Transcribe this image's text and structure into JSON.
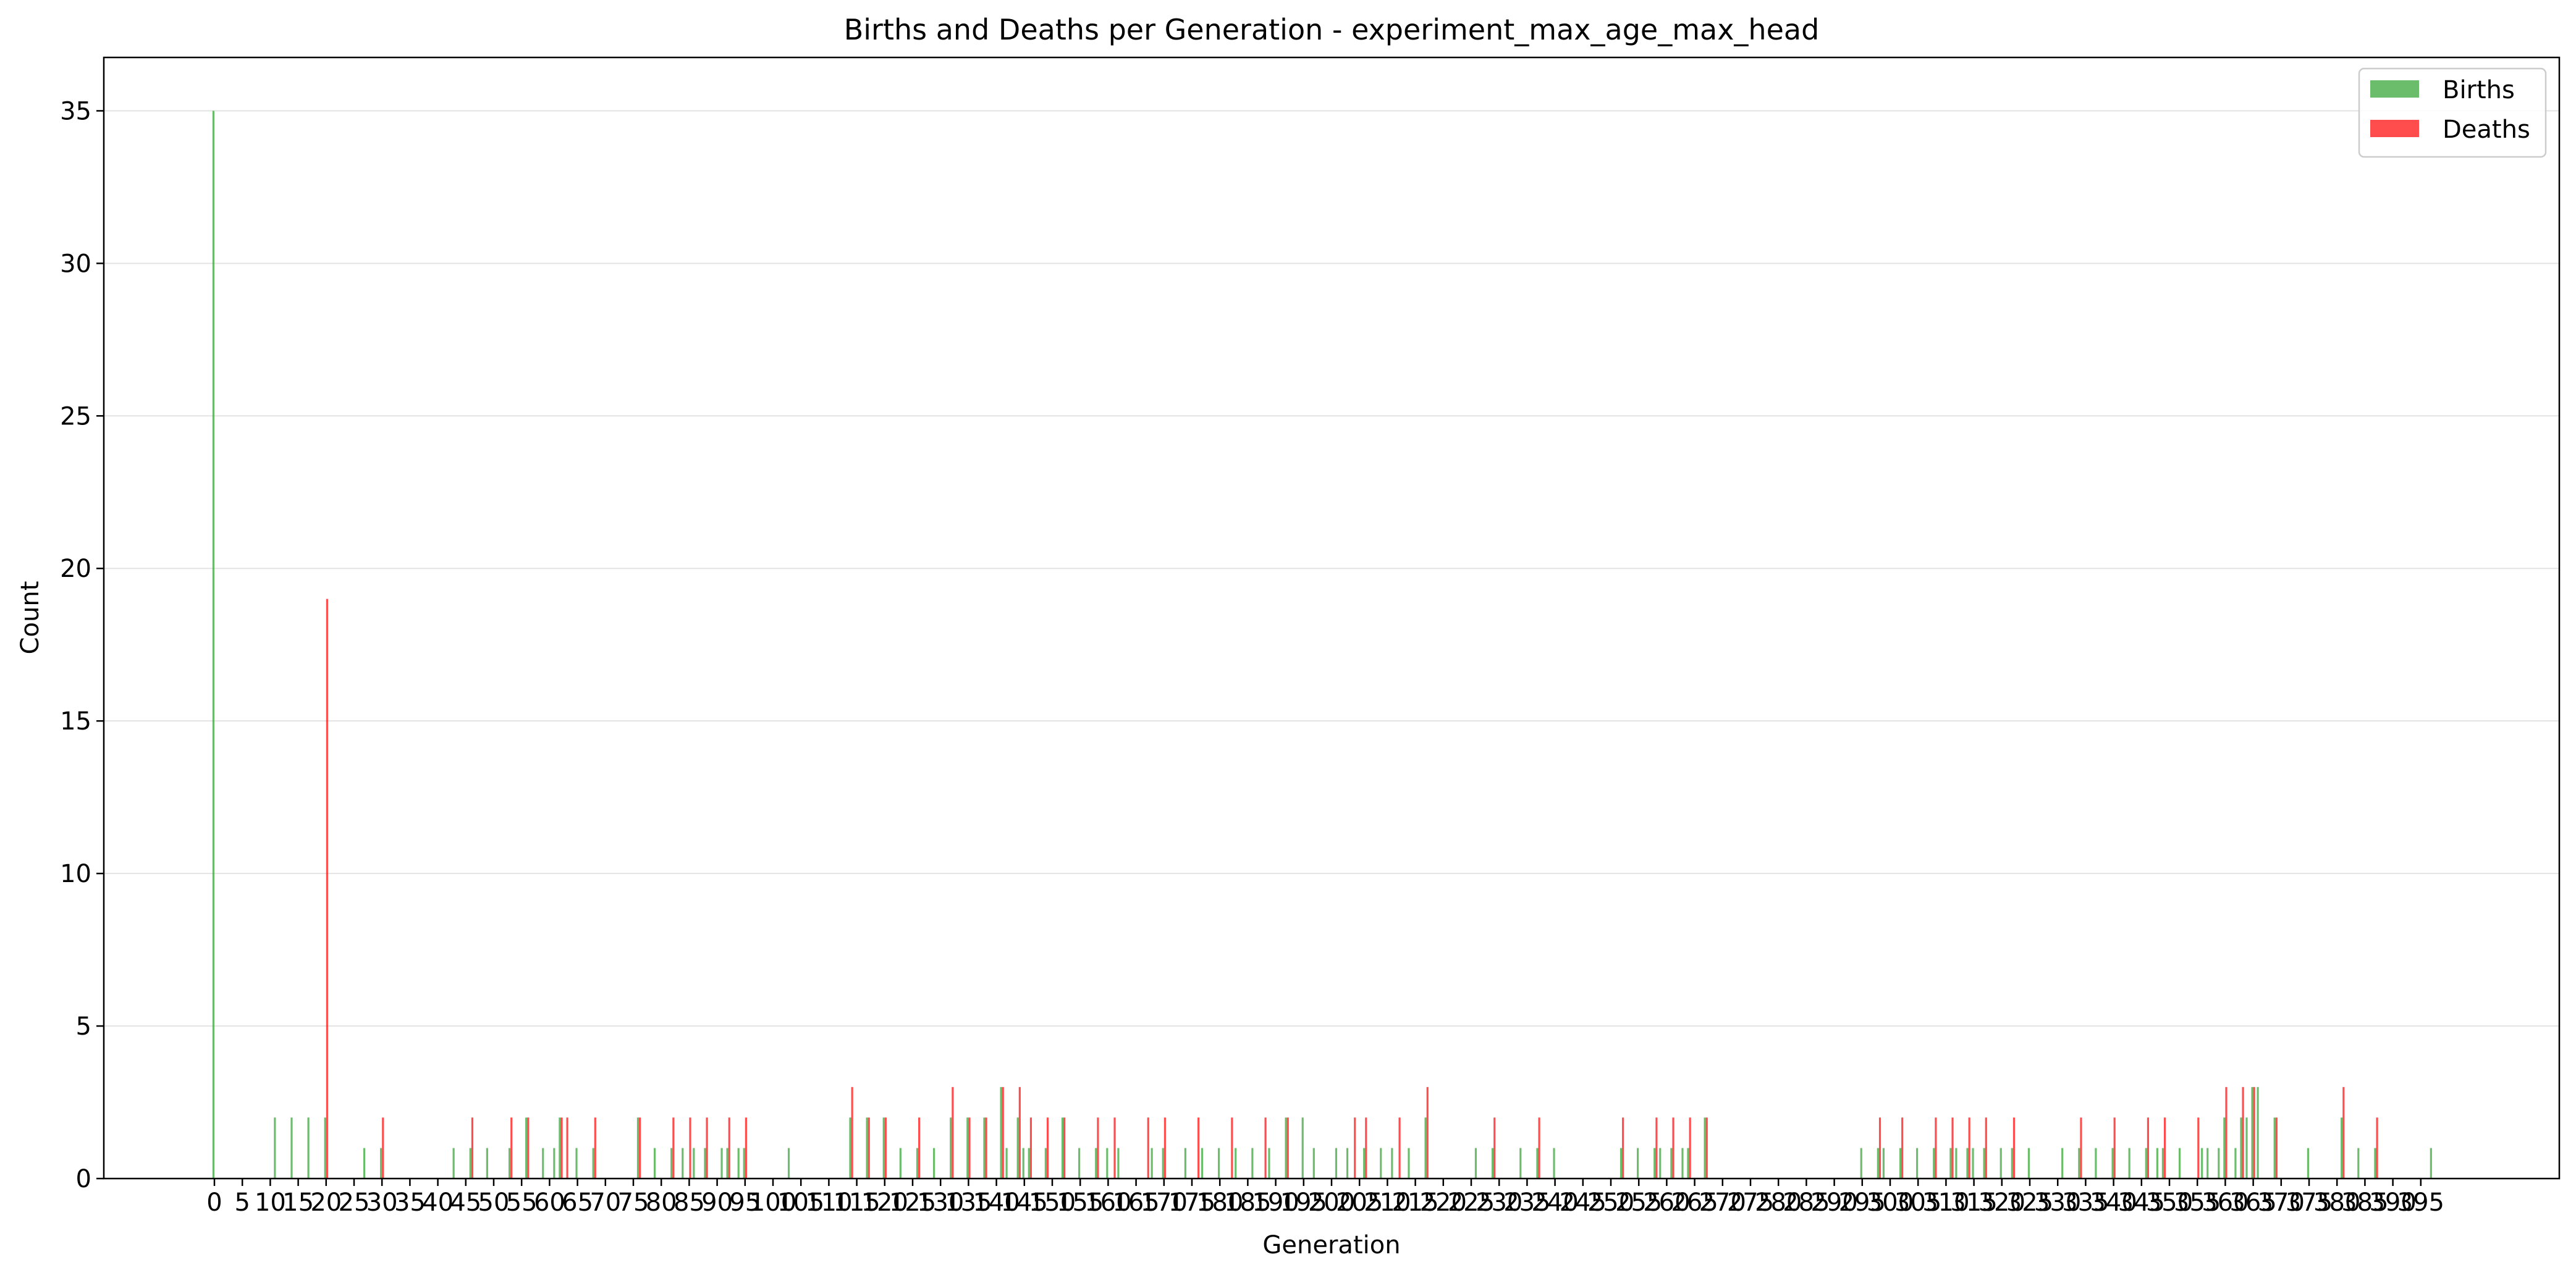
{
  "chart_data": {
    "type": "bar",
    "title": "Births and Deaths per Generation - experiment_max_age_max_head",
    "xlabel": "Generation",
    "ylabel": "Count",
    "xlim": [
      -19.8,
      419.8
    ],
    "ylim": [
      0,
      36.75
    ],
    "grid": "y",
    "legend_placement": "top-right",
    "xticks": [
      0,
      5,
      10,
      15,
      20,
      25,
      30,
      35,
      40,
      45,
      50,
      55,
      60,
      65,
      70,
      75,
      80,
      85,
      90,
      95,
      100,
      105,
      110,
      115,
      120,
      125,
      130,
      135,
      140,
      145,
      150,
      155,
      160,
      165,
      170,
      175,
      180,
      185,
      190,
      195,
      200,
      205,
      210,
      215,
      220,
      225,
      230,
      235,
      240,
      245,
      250,
      255,
      260,
      265,
      270,
      275,
      280,
      285,
      290,
      295,
      300,
      305,
      310,
      315,
      320,
      325,
      330,
      335,
      340,
      345,
      350,
      355,
      360,
      365,
      370,
      375,
      380,
      385,
      390,
      395
    ],
    "yticks": [
      0,
      5,
      10,
      15,
      20,
      25,
      30,
      35
    ],
    "series": [
      {
        "name": "Births",
        "color": "#2ca02c",
        "points": [
          [
            0,
            35
          ],
          [
            11,
            2
          ],
          [
            14,
            2
          ],
          [
            17,
            2
          ],
          [
            20,
            2
          ],
          [
            27,
            1
          ],
          [
            30,
            1
          ],
          [
            43,
            1
          ],
          [
            46,
            1
          ],
          [
            49,
            1
          ],
          [
            53,
            1
          ],
          [
            56,
            2
          ],
          [
            59,
            1
          ],
          [
            61,
            1
          ],
          [
            62,
            2
          ],
          [
            65,
            1
          ],
          [
            68,
            1
          ],
          [
            76,
            2
          ],
          [
            79,
            1
          ],
          [
            82,
            1
          ],
          [
            84,
            1
          ],
          [
            86,
            1
          ],
          [
            88,
            1
          ],
          [
            91,
            1
          ],
          [
            92,
            1
          ],
          [
            94,
            1
          ],
          [
            95,
            1
          ],
          [
            103,
            1
          ],
          [
            114,
            2
          ],
          [
            117,
            2
          ],
          [
            120,
            2
          ],
          [
            123,
            1
          ],
          [
            126,
            1
          ],
          [
            129,
            1
          ],
          [
            132,
            2
          ],
          [
            135,
            2
          ],
          [
            138,
            2
          ],
          [
            141,
            3
          ],
          [
            142,
            1
          ],
          [
            144,
            2
          ],
          [
            145,
            1
          ],
          [
            146,
            1
          ],
          [
            149,
            1
          ],
          [
            152,
            2
          ],
          [
            155,
            1
          ],
          [
            158,
            1
          ],
          [
            160,
            1
          ],
          [
            162,
            1
          ],
          [
            168,
            1
          ],
          [
            170,
            1
          ],
          [
            174,
            1
          ],
          [
            177,
            1
          ],
          [
            180,
            1
          ],
          [
            183,
            1
          ],
          [
            186,
            1
          ],
          [
            189,
            1
          ],
          [
            192,
            2
          ],
          [
            195,
            2
          ],
          [
            197,
            1
          ],
          [
            201,
            1
          ],
          [
            203,
            1
          ],
          [
            206,
            1
          ],
          [
            209,
            1
          ],
          [
            211,
            1
          ],
          [
            214,
            1
          ],
          [
            217,
            2
          ],
          [
            226,
            1
          ],
          [
            229,
            1
          ],
          [
            234,
            1
          ],
          [
            237,
            1
          ],
          [
            240,
            1
          ],
          [
            252,
            1
          ],
          [
            255,
            1
          ],
          [
            258,
            1
          ],
          [
            259,
            1
          ],
          [
            261,
            1
          ],
          [
            263,
            1
          ],
          [
            264,
            1
          ],
          [
            267,
            2
          ],
          [
            295,
            1
          ],
          [
            298,
            1
          ],
          [
            299,
            1
          ],
          [
            302,
            1
          ],
          [
            305,
            1
          ],
          [
            308,
            1
          ],
          [
            311,
            1
          ],
          [
            312,
            1
          ],
          [
            314,
            1
          ],
          [
            315,
            1
          ],
          [
            317,
            1
          ],
          [
            320,
            1
          ],
          [
            322,
            1
          ],
          [
            325,
            1
          ],
          [
            331,
            1
          ],
          [
            334,
            1
          ],
          [
            337,
            1
          ],
          [
            340,
            1
          ],
          [
            343,
            1
          ],
          [
            346,
            1
          ],
          [
            348,
            1
          ],
          [
            349,
            1
          ],
          [
            352,
            1
          ],
          [
            356,
            1
          ],
          [
            357,
            1
          ],
          [
            359,
            1
          ],
          [
            360,
            2
          ],
          [
            362,
            1
          ],
          [
            363,
            2
          ],
          [
            364,
            2
          ],
          [
            365,
            3
          ],
          [
            366,
            3
          ],
          [
            369,
            2
          ],
          [
            375,
            1
          ],
          [
            381,
            2
          ],
          [
            384,
            1
          ],
          [
            387,
            1
          ],
          [
            397,
            1
          ]
        ]
      },
      {
        "name": "Deaths",
        "color": "#ff0000",
        "points": [
          [
            20,
            19
          ],
          [
            30,
            2
          ],
          [
            46,
            2
          ],
          [
            53,
            2
          ],
          [
            56,
            2
          ],
          [
            62,
            2
          ],
          [
            63,
            2
          ],
          [
            68,
            2
          ],
          [
            76,
            2
          ],
          [
            82,
            2
          ],
          [
            85,
            2
          ],
          [
            88,
            2
          ],
          [
            92,
            2
          ],
          [
            95,
            2
          ],
          [
            114,
            3
          ],
          [
            117,
            2
          ],
          [
            120,
            2
          ],
          [
            126,
            2
          ],
          [
            132,
            3
          ],
          [
            135,
            2
          ],
          [
            138,
            2
          ],
          [
            141,
            3
          ],
          [
            144,
            3
          ],
          [
            146,
            2
          ],
          [
            149,
            2
          ],
          [
            152,
            2
          ],
          [
            158,
            2
          ],
          [
            161,
            2
          ],
          [
            167,
            2
          ],
          [
            170,
            2
          ],
          [
            176,
            2
          ],
          [
            182,
            2
          ],
          [
            188,
            2
          ],
          [
            192,
            2
          ],
          [
            204,
            2
          ],
          [
            206,
            2
          ],
          [
            212,
            2
          ],
          [
            217,
            3
          ],
          [
            229,
            2
          ],
          [
            237,
            2
          ],
          [
            252,
            2
          ],
          [
            258,
            2
          ],
          [
            261,
            2
          ],
          [
            264,
            2
          ],
          [
            267,
            2
          ],
          [
            298,
            2
          ],
          [
            302,
            2
          ],
          [
            308,
            2
          ],
          [
            311,
            2
          ],
          [
            314,
            2
          ],
          [
            317,
            2
          ],
          [
            322,
            2
          ],
          [
            334,
            2
          ],
          [
            340,
            2
          ],
          [
            346,
            2
          ],
          [
            349,
            2
          ],
          [
            355,
            2
          ],
          [
            360,
            3
          ],
          [
            363,
            3
          ],
          [
            365,
            3
          ],
          [
            369,
            2
          ],
          [
            381,
            3
          ],
          [
            387,
            2
          ]
        ]
      }
    ]
  }
}
